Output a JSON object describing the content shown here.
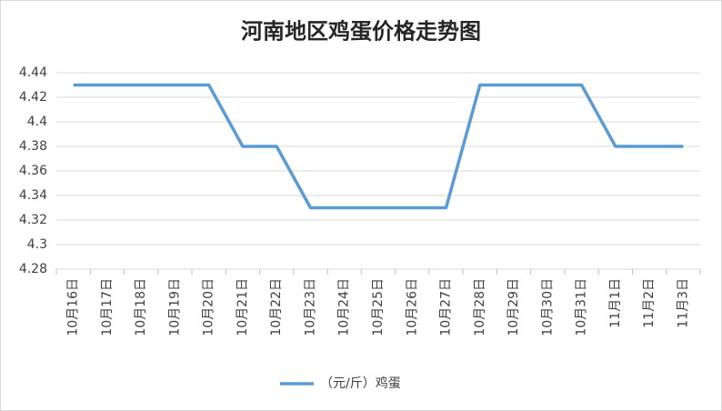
{
  "chart_data": {
    "type": "line",
    "title": "河南地区鸡蛋价格走势图",
    "categories": [
      "10月16日",
      "10月17日",
      "10月18日",
      "10月19日",
      "10月20日",
      "10月21日",
      "10月22日",
      "10月23日",
      "10月24日",
      "10月25日",
      "10月26日",
      "10月27日",
      "10月28日",
      "10月29日",
      "10月30日",
      "10月31日",
      "11月1日",
      "11月2日",
      "11月3日"
    ],
    "series": [
      {
        "name": "（元/斤）鸡蛋",
        "color": "#5b9bd5",
        "values": [
          4.43,
          4.43,
          4.43,
          4.43,
          4.43,
          4.38,
          4.38,
          4.33,
          4.33,
          4.33,
          4.33,
          4.33,
          4.43,
          4.43,
          4.43,
          4.43,
          4.38,
          4.38,
          4.38
        ]
      }
    ],
    "ylim": [
      4.28,
      4.44
    ],
    "yticks": [
      4.28,
      4.3,
      4.32,
      4.34,
      4.36,
      4.38,
      4.4,
      4.42,
      4.44
    ],
    "grid": true,
    "legend": "bottom"
  }
}
